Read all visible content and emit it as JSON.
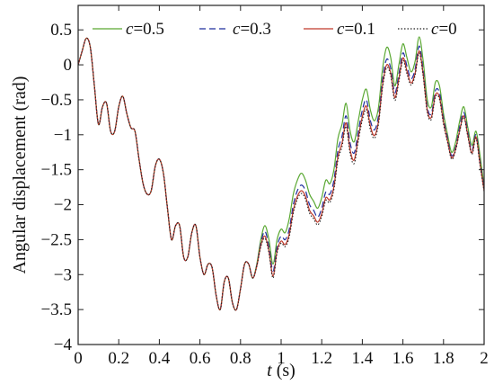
{
  "chart_data": {
    "type": "line",
    "xlabel": {
      "var": "t",
      "unit": " (s)"
    },
    "ylabel": "Angular displacement (rad)",
    "xlim": [
      0,
      2
    ],
    "ylim": [
      -4,
      0.85
    ],
    "xticks": [
      0,
      0.2,
      0.4,
      0.6,
      0.8,
      1,
      1.2,
      1.4,
      1.6,
      1.8,
      2
    ],
    "xtick_labels": [
      "0",
      "0.2",
      "0.4",
      "0.6",
      "0.8",
      "1",
      "1.2",
      "1.4",
      "1.6",
      "1.8",
      "2"
    ],
    "yticks": [
      0.5,
      0,
      -0.5,
      -1,
      -1.5,
      -2,
      -2.5,
      -3,
      -3.5,
      -4
    ],
    "ytick_labels": [
      "0.5",
      "0",
      "−0.5",
      "−1",
      "−1.5",
      "−2",
      "−2.5",
      "−3",
      "−3.5",
      "−4"
    ],
    "grid": false,
    "legend_position": "top",
    "series": [
      {
        "name": "c=0.5",
        "var": "c",
        "value_label": "=0.5",
        "color": "#5aa832",
        "dash": "solid",
        "x": [
          0,
          0.02,
          0.04,
          0.06,
          0.08,
          0.1,
          0.12,
          0.14,
          0.16,
          0.18,
          0.2,
          0.22,
          0.24,
          0.26,
          0.28,
          0.3,
          0.32,
          0.34,
          0.36,
          0.38,
          0.4,
          0.42,
          0.44,
          0.46,
          0.48,
          0.5,
          0.52,
          0.54,
          0.56,
          0.58,
          0.6,
          0.62,
          0.64,
          0.66,
          0.68,
          0.7,
          0.72,
          0.74,
          0.76,
          0.78,
          0.8,
          0.82,
          0.84,
          0.86,
          0.88,
          0.9,
          0.92,
          0.94,
          0.96,
          0.98,
          1,
          1.02,
          1.04,
          1.06,
          1.08,
          1.1,
          1.12,
          1.14,
          1.16,
          1.18,
          1.2,
          1.22,
          1.24,
          1.26,
          1.28,
          1.3,
          1.32,
          1.34,
          1.36,
          1.38,
          1.4,
          1.42,
          1.44,
          1.46,
          1.48,
          1.5,
          1.52,
          1.54,
          1.56,
          1.58,
          1.6,
          1.62,
          1.64,
          1.66,
          1.68,
          1.7,
          1.72,
          1.74,
          1.76,
          1.78,
          1.8,
          1.82,
          1.84,
          1.86,
          1.88,
          1.9,
          1.92,
          1.94,
          1.96,
          1.98,
          2
        ],
        "y": [
          0,
          0.2,
          0.38,
          0.25,
          -0.3,
          -0.85,
          -0.6,
          -0.55,
          -0.95,
          -0.95,
          -0.6,
          -0.45,
          -0.7,
          -0.9,
          -0.95,
          -1.35,
          -1.7,
          -1.85,
          -1.8,
          -1.45,
          -1.35,
          -1.55,
          -2.05,
          -2.5,
          -2.3,
          -2.3,
          -2.75,
          -2.75,
          -2.4,
          -2.3,
          -2.75,
          -3,
          -2.85,
          -2.9,
          -3.3,
          -3.5,
          -3.1,
          -3.05,
          -3.4,
          -3.5,
          -3.2,
          -2.85,
          -2.85,
          -3.05,
          -2.85,
          -2.5,
          -2.3,
          -2.5,
          -2.85,
          -2.5,
          -2.35,
          -2.4,
          -2.2,
          -1.85,
          -1.65,
          -1.55,
          -1.65,
          -1.85,
          -1.95,
          -2.05,
          -1.9,
          -1.65,
          -1.7,
          -1.5,
          -1.05,
          -0.85,
          -0.55,
          -0.95,
          -1.1,
          -0.8,
          -0.5,
          -0.35,
          -0.65,
          -0.8,
          -0.6,
          -0.05,
          0.25,
          0.1,
          -0.3,
          0,
          0.3,
          0.1,
          -0.1,
          0.05,
          0.4,
          0.05,
          -0.5,
          -0.6,
          -0.25,
          -0.3,
          -0.7,
          -1,
          -1.25,
          -1.1,
          -0.8,
          -0.6,
          -0.9,
          -1.15,
          -0.95,
          -1.3,
          -1.75
        ]
      },
      {
        "name": "c=0.3",
        "var": "c",
        "value_label": "=0.3",
        "color": "#1f2f9e",
        "dash": "dashed",
        "x": [
          0,
          0.02,
          0.04,
          0.06,
          0.08,
          0.1,
          0.12,
          0.14,
          0.16,
          0.18,
          0.2,
          0.22,
          0.24,
          0.26,
          0.28,
          0.3,
          0.32,
          0.34,
          0.36,
          0.38,
          0.4,
          0.42,
          0.44,
          0.46,
          0.48,
          0.5,
          0.52,
          0.54,
          0.56,
          0.58,
          0.6,
          0.62,
          0.64,
          0.66,
          0.68,
          0.7,
          0.72,
          0.74,
          0.76,
          0.78,
          0.8,
          0.82,
          0.84,
          0.86,
          0.88,
          0.9,
          0.92,
          0.94,
          0.96,
          0.98,
          1,
          1.02,
          1.04,
          1.06,
          1.08,
          1.1,
          1.12,
          1.14,
          1.16,
          1.18,
          1.2,
          1.22,
          1.24,
          1.26,
          1.28,
          1.3,
          1.32,
          1.34,
          1.36,
          1.38,
          1.4,
          1.42,
          1.44,
          1.46,
          1.48,
          1.5,
          1.52,
          1.54,
          1.56,
          1.58,
          1.6,
          1.62,
          1.64,
          1.66,
          1.68,
          1.7,
          1.72,
          1.74,
          1.76,
          1.78,
          1.8,
          1.82,
          1.84,
          1.86,
          1.88,
          1.9,
          1.92,
          1.94,
          1.96,
          1.98,
          2
        ],
        "y": [
          0,
          0.2,
          0.38,
          0.25,
          -0.3,
          -0.85,
          -0.6,
          -0.55,
          -0.95,
          -0.95,
          -0.6,
          -0.45,
          -0.7,
          -0.9,
          -0.95,
          -1.35,
          -1.7,
          -1.85,
          -1.8,
          -1.45,
          -1.35,
          -1.55,
          -2.05,
          -2.5,
          -2.3,
          -2.3,
          -2.75,
          -2.75,
          -2.4,
          -2.3,
          -2.75,
          -3,
          -2.85,
          -2.9,
          -3.3,
          -3.5,
          -3.1,
          -3.05,
          -3.4,
          -3.5,
          -3.2,
          -2.85,
          -2.85,
          -3.05,
          -2.87,
          -2.55,
          -2.38,
          -2.6,
          -2.95,
          -2.6,
          -2.45,
          -2.5,
          -2.35,
          -2,
          -1.8,
          -1.72,
          -1.8,
          -2,
          -2.08,
          -2.18,
          -2.05,
          -1.82,
          -1.85,
          -1.65,
          -1.22,
          -1.02,
          -0.73,
          -1.12,
          -1.26,
          -0.95,
          -0.65,
          -0.5,
          -0.8,
          -0.93,
          -0.72,
          -0.2,
          0.08,
          -0.05,
          -0.4,
          -0.13,
          0.17,
          -0.02,
          -0.2,
          -0.06,
          0.27,
          -0.08,
          -0.6,
          -0.7,
          -0.37,
          -0.4,
          -0.77,
          -1.05,
          -1.3,
          -1.17,
          -0.88,
          -0.68,
          -0.97,
          -1.22,
          -1,
          -1.38,
          -1.78
        ]
      },
      {
        "name": "c=0.1",
        "var": "c",
        "value_label": "=0.1",
        "color": "#c0392b",
        "dash": "solid",
        "x": [
          0,
          0.02,
          0.04,
          0.06,
          0.08,
          0.1,
          0.12,
          0.14,
          0.16,
          0.18,
          0.2,
          0.22,
          0.24,
          0.26,
          0.28,
          0.3,
          0.32,
          0.34,
          0.36,
          0.38,
          0.4,
          0.42,
          0.44,
          0.46,
          0.48,
          0.5,
          0.52,
          0.54,
          0.56,
          0.58,
          0.6,
          0.62,
          0.64,
          0.66,
          0.68,
          0.7,
          0.72,
          0.74,
          0.76,
          0.78,
          0.8,
          0.82,
          0.84,
          0.86,
          0.88,
          0.9,
          0.92,
          0.94,
          0.96,
          0.98,
          1,
          1.02,
          1.04,
          1.06,
          1.08,
          1.1,
          1.12,
          1.14,
          1.16,
          1.18,
          1.2,
          1.22,
          1.24,
          1.26,
          1.28,
          1.3,
          1.32,
          1.34,
          1.36,
          1.38,
          1.4,
          1.42,
          1.44,
          1.46,
          1.48,
          1.5,
          1.52,
          1.54,
          1.56,
          1.58,
          1.6,
          1.62,
          1.64,
          1.66,
          1.68,
          1.7,
          1.72,
          1.74,
          1.76,
          1.78,
          1.8,
          1.82,
          1.84,
          1.86,
          1.88,
          1.9,
          1.92,
          1.94,
          1.96,
          1.98,
          2
        ],
        "y": [
          0,
          0.2,
          0.38,
          0.25,
          -0.3,
          -0.85,
          -0.6,
          -0.55,
          -0.95,
          -0.95,
          -0.6,
          -0.45,
          -0.7,
          -0.9,
          -0.95,
          -1.35,
          -1.7,
          -1.85,
          -1.8,
          -1.45,
          -1.35,
          -1.55,
          -2.05,
          -2.5,
          -2.3,
          -2.3,
          -2.75,
          -2.75,
          -2.4,
          -2.3,
          -2.75,
          -3,
          -2.85,
          -2.9,
          -3.3,
          -3.5,
          -3.1,
          -3.05,
          -3.4,
          -3.5,
          -3.2,
          -2.85,
          -2.85,
          -3.05,
          -2.88,
          -2.58,
          -2.45,
          -2.66,
          -3.02,
          -2.66,
          -2.52,
          -2.57,
          -2.42,
          -2.08,
          -1.88,
          -1.8,
          -1.88,
          -2.08,
          -2.16,
          -2.25,
          -2.13,
          -1.9,
          -1.93,
          -1.74,
          -1.31,
          -1.12,
          -0.83,
          -1.22,
          -1.36,
          -1.04,
          -0.74,
          -0.59,
          -0.88,
          -1.01,
          -0.8,
          -0.28,
          0,
          -0.12,
          -0.47,
          -0.2,
          0.1,
          -0.09,
          -0.26,
          -0.12,
          0.2,
          -0.14,
          -0.65,
          -0.75,
          -0.43,
          -0.46,
          -0.82,
          -1.09,
          -1.33,
          -1.2,
          -0.93,
          -0.73,
          -1.01,
          -1.26,
          -1.03,
          -1.42,
          -1.8
        ]
      },
      {
        "name": "c=0",
        "var": "c",
        "value_label": "=0",
        "color": "#222222",
        "dash": "dotted",
        "x": [
          0,
          0.02,
          0.04,
          0.06,
          0.08,
          0.1,
          0.12,
          0.14,
          0.16,
          0.18,
          0.2,
          0.22,
          0.24,
          0.26,
          0.28,
          0.3,
          0.32,
          0.34,
          0.36,
          0.38,
          0.4,
          0.42,
          0.44,
          0.46,
          0.48,
          0.5,
          0.52,
          0.54,
          0.56,
          0.58,
          0.6,
          0.62,
          0.64,
          0.66,
          0.68,
          0.7,
          0.72,
          0.74,
          0.76,
          0.78,
          0.8,
          0.82,
          0.84,
          0.86,
          0.88,
          0.9,
          0.92,
          0.94,
          0.96,
          0.98,
          1,
          1.02,
          1.04,
          1.06,
          1.08,
          1.1,
          1.12,
          1.14,
          1.16,
          1.18,
          1.2,
          1.22,
          1.24,
          1.26,
          1.28,
          1.3,
          1.32,
          1.34,
          1.36,
          1.38,
          1.4,
          1.42,
          1.44,
          1.46,
          1.48,
          1.5,
          1.52,
          1.54,
          1.56,
          1.58,
          1.6,
          1.62,
          1.64,
          1.66,
          1.68,
          1.7,
          1.72,
          1.74,
          1.76,
          1.78,
          1.8,
          1.82,
          1.84,
          1.86,
          1.88,
          1.9,
          1.92,
          1.94,
          1.96,
          1.98,
          2
        ],
        "y": [
          0,
          0.2,
          0.38,
          0.25,
          -0.3,
          -0.85,
          -0.6,
          -0.55,
          -0.95,
          -0.95,
          -0.6,
          -0.45,
          -0.7,
          -0.9,
          -0.95,
          -1.35,
          -1.7,
          -1.85,
          -1.8,
          -1.45,
          -1.35,
          -1.55,
          -2.05,
          -2.5,
          -2.3,
          -2.3,
          -2.75,
          -2.75,
          -2.4,
          -2.3,
          -2.75,
          -3,
          -2.85,
          -2.9,
          -3.3,
          -3.5,
          -3.1,
          -3.05,
          -3.4,
          -3.5,
          -3.2,
          -2.85,
          -2.85,
          -3.05,
          -2.88,
          -2.6,
          -2.48,
          -2.69,
          -3.05,
          -2.69,
          -2.55,
          -2.6,
          -2.46,
          -2.12,
          -1.92,
          -1.84,
          -1.92,
          -2.12,
          -2.2,
          -2.29,
          -2.17,
          -1.94,
          -1.97,
          -1.78,
          -1.36,
          -1.17,
          -0.88,
          -1.27,
          -1.41,
          -1.09,
          -0.79,
          -0.64,
          -0.93,
          -1.05,
          -0.84,
          -0.32,
          -0.04,
          -0.16,
          -0.51,
          -0.24,
          0.06,
          -0.13,
          -0.29,
          -0.15,
          0.17,
          -0.17,
          -0.68,
          -0.78,
          -0.46,
          -0.49,
          -0.85,
          -1.11,
          -1.35,
          -1.22,
          -0.95,
          -0.75,
          -1.03,
          -1.28,
          -1.05,
          -1.44,
          -1.81
        ]
      }
    ]
  }
}
